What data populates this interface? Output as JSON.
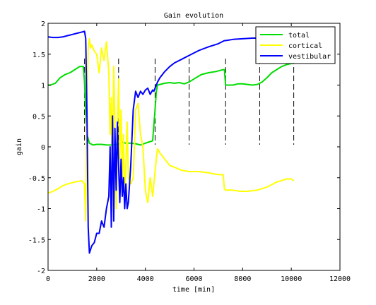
{
  "chart_data": {
    "type": "line",
    "title": "Gain evolution",
    "xlabel": "time [min]",
    "ylabel": "gain",
    "xlim": [
      0,
      12000
    ],
    "ylim": [
      -2,
      2
    ],
    "x_ticks": [
      "0",
      "2000",
      "4000",
      "6000",
      "8000",
      "10000",
      "12000"
    ],
    "y_ticks": [
      "-2",
      "-1.5",
      "-1",
      "-0.5",
      "0",
      "0.5",
      "1",
      "1.5",
      "2"
    ],
    "grid": false,
    "legend_position": "top-right",
    "event_markers_x": [
      0,
      1500,
      2900,
      4400,
      5800,
      7300,
      8700,
      10100
    ],
    "series": [
      {
        "name": "total",
        "color": "#00dd00",
        "x": [
          0,
          100,
          300,
          500,
          700,
          900,
          1100,
          1300,
          1450,
          1500,
          1550,
          1600,
          1700,
          1850,
          2000,
          2200,
          2400,
          2600,
          2800,
          3000,
          3200,
          3400,
          3600,
          3800,
          4000,
          4150,
          4250,
          4300,
          4400,
          4450,
          4500,
          4600,
          4800,
          5000,
          5200,
          5400,
          5600,
          5800,
          6000,
          6300,
          6600,
          6900,
          7200,
          7250,
          7300,
          7400,
          7600,
          7800,
          8000,
          8200,
          8400,
          8600,
          8800,
          9000,
          9200,
          9400,
          9600,
          9800,
          10000,
          10100
        ],
        "values": [
          1.0,
          1.0,
          1.03,
          1.12,
          1.17,
          1.2,
          1.25,
          1.3,
          1.3,
          1.05,
          0.55,
          0.2,
          0.06,
          0.03,
          0.04,
          0.04,
          0.03,
          0.03,
          0.04,
          0.08,
          0.06,
          0.06,
          0.05,
          0.03,
          0.06,
          0.08,
          0.09,
          0.1,
          0.6,
          0.9,
          1.0,
          1.01,
          1.03,
          1.04,
          1.03,
          1.04,
          1.02,
          1.05,
          1.1,
          1.17,
          1.2,
          1.22,
          1.25,
          1.25,
          1.0,
          1.0,
          1.0,
          1.02,
          1.02,
          1.01,
          1.0,
          1.01,
          1.05,
          1.12,
          1.2,
          1.25,
          1.3,
          1.33,
          1.35,
          1.35
        ]
      },
      {
        "name": "cortical",
        "color": "#ffff00",
        "x": [
          0,
          200,
          400,
          600,
          800,
          1000,
          1200,
          1400,
          1500,
          1550,
          1600,
          1650,
          1700,
          1750,
          1800,
          1900,
          2000,
          2100,
          2200,
          2300,
          2400,
          2500,
          2550,
          2600,
          2650,
          2700,
          2750,
          2800,
          2850,
          2900,
          2950,
          3000,
          3050,
          3100,
          3150,
          3200,
          3250,
          3300,
          3400,
          3500,
          3600,
          3700,
          3800,
          3900,
          4000,
          4100,
          4200,
          4300,
          4350,
          4400,
          4450,
          4500,
          4600,
          4800,
          5000,
          5200,
          5500,
          5800,
          6200,
          6600,
          7000,
          7200,
          7250,
          7300,
          7600,
          7900,
          8200,
          8600,
          9000,
          9400,
          9800,
          10000,
          10100
        ],
        "values": [
          -0.75,
          -0.72,
          -0.68,
          -0.63,
          -0.6,
          -0.58,
          -0.56,
          -0.55,
          -0.6,
          -1.2,
          0.8,
          1.6,
          1.75,
          1.6,
          1.65,
          1.55,
          1.5,
          1.2,
          1.6,
          1.4,
          1.7,
          1.2,
          0.2,
          0.8,
          -0.6,
          1.3,
          0.4,
          -1.0,
          0.3,
          1.1,
          -0.2,
          0.6,
          -0.5,
          0.2,
          -0.9,
          -0.3,
          0.4,
          -0.5,
          -0.6,
          -0.5,
          0.6,
          0.7,
          0.2,
          0.0,
          -0.7,
          -0.9,
          -0.5,
          -0.8,
          -0.6,
          -0.4,
          -0.2,
          -0.03,
          -0.1,
          -0.2,
          -0.3,
          -0.33,
          -0.38,
          -0.4,
          -0.4,
          -0.42,
          -0.45,
          -0.45,
          -0.68,
          -0.7,
          -0.7,
          -0.72,
          -0.72,
          -0.7,
          -0.65,
          -0.57,
          -0.52,
          -0.52,
          -0.55
        ]
      },
      {
        "name": "vestibular",
        "color": "#0000ff",
        "x": [
          0,
          200,
          400,
          600,
          800,
          1000,
          1200,
          1400,
          1500,
          1550,
          1600,
          1650,
          1700,
          1800,
          1900,
          2000,
          2100,
          2200,
          2300,
          2400,
          2500,
          2550,
          2600,
          2650,
          2700,
          2750,
          2800,
          2850,
          2900,
          2950,
          3000,
          3050,
          3100,
          3150,
          3200,
          3250,
          3300,
          3400,
          3500,
          3600,
          3700,
          3800,
          3900,
          4000,
          4100,
          4200,
          4300,
          4350,
          4400,
          4450,
          4500,
          4600,
          4800,
          5000,
          5200,
          5500,
          5800,
          6200,
          6600,
          7000,
          7250,
          7300,
          7600,
          8000,
          8400,
          8800,
          9200,
          9600,
          10000,
          10100
        ],
        "values": [
          1.78,
          1.77,
          1.77,
          1.78,
          1.8,
          1.82,
          1.84,
          1.86,
          1.87,
          1.75,
          0.5,
          -1.3,
          -1.72,
          -1.6,
          -1.55,
          -1.4,
          -1.4,
          -1.2,
          -1.3,
          -1.0,
          -0.8,
          0.0,
          -1.3,
          0.5,
          -1.2,
          0.3,
          -0.7,
          0.4,
          -0.3,
          -0.9,
          -0.2,
          -0.8,
          -0.5,
          -1.0,
          -0.6,
          -1.0,
          -0.9,
          -0.3,
          0.6,
          0.9,
          0.8,
          0.9,
          0.85,
          0.92,
          0.95,
          0.85,
          0.92,
          0.9,
          0.95,
          1.0,
          1.05,
          1.12,
          1.22,
          1.3,
          1.36,
          1.42,
          1.48,
          1.56,
          1.62,
          1.67,
          1.72,
          1.72,
          1.74,
          1.75,
          1.76,
          1.76,
          1.76,
          1.76,
          1.77,
          1.77
        ]
      }
    ]
  }
}
